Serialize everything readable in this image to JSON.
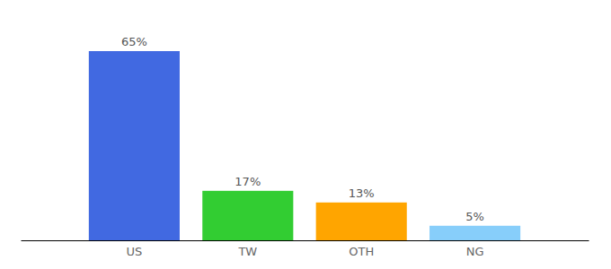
{
  "chart_data": {
    "type": "bar",
    "categories": [
      "US",
      "TW",
      "OTH",
      "NG"
    ],
    "values": [
      65,
      17,
      13,
      5
    ],
    "value_labels": [
      "65%",
      "17%",
      "13%",
      "5%"
    ],
    "colors": [
      "#4169e1",
      "#32cd32",
      "#ffa500",
      "#87cefa"
    ],
    "ylim": [
      0,
      65
    ],
    "data_labels": true,
    "tick_labels": "x"
  }
}
